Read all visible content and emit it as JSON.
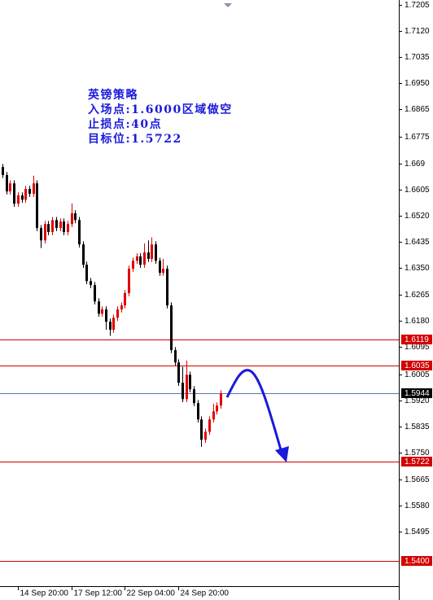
{
  "chart_data": {
    "type": "candlestick",
    "annotation": [
      "英镑策略",
      "入场点:1.6000区域做空",
      "止损点:40点",
      "目标位:1.5722"
    ],
    "categories": [
      null,
      null,
      null,
      null,
      "14 Sep 20:00",
      null,
      null,
      null,
      null,
      null,
      null,
      null,
      null,
      null,
      null,
      null,
      null,
      null,
      "17 Sep 12:00",
      null,
      null,
      null,
      null,
      null,
      null,
      null,
      null,
      null,
      null,
      null,
      null,
      null,
      "22 Sep 04:00",
      null,
      null,
      null,
      null,
      null,
      null,
      null,
      null,
      null,
      null,
      null,
      null,
      null,
      "24 Sep 20:00",
      null,
      null,
      null,
      null,
      null,
      null,
      null,
      null,
      null,
      null,
      null
    ],
    "open": [
      1.6678,
      1.6652,
      1.6599,
      1.6625,
      1.6559,
      1.6586,
      1.6572,
      1.6607,
      1.6591,
      1.6625,
      1.648,
      1.644,
      1.6493,
      1.6467,
      1.6506,
      1.648,
      1.6501,
      1.6467,
      1.6493,
      1.6528,
      1.6506,
      1.6427,
      1.6361,
      1.6308,
      1.6295,
      1.6242,
      1.6202,
      1.6216,
      1.6176,
      1.615,
      1.6189,
      1.6216,
      1.6229,
      1.6269,
      1.6348,
      1.6374,
      1.6388,
      1.6361,
      1.6401,
      1.638,
      1.6427,
      1.6374,
      1.6335,
      1.6348,
      1.6229,
      1.6084,
      1.6044,
      1.5978,
      1.5925,
      1.6004,
      1.5957,
      1.5912,
      1.5859,
      1.5793,
      1.5819,
      1.5859,
      1.5885,
      1.5904
    ],
    "high": [
      1.6688,
      1.6662,
      1.6635,
      1.6635,
      1.6596,
      1.6596,
      1.6617,
      1.6617,
      1.665,
      1.6635,
      1.649,
      1.6503,
      1.6503,
      1.6516,
      1.6516,
      1.6511,
      1.6511,
      1.6503,
      1.656,
      1.6538,
      1.6516,
      1.6437,
      1.6371,
      1.6318,
      1.6305,
      1.6252,
      1.6226,
      1.6226,
      1.6186,
      1.6199,
      1.6226,
      1.6239,
      1.6279,
      1.6358,
      1.6384,
      1.6398,
      1.6398,
      1.643,
      1.644,
      1.645,
      1.6437,
      1.6384,
      1.638,
      1.6358,
      1.6239,
      1.6094,
      1.6054,
      1.603,
      1.605,
      1.6014,
      1.5967,
      1.5922,
      1.5869,
      1.5829,
      1.5869,
      1.591,
      1.5914,
      1.5954
    ],
    "low": [
      1.6642,
      1.6589,
      1.6589,
      1.6549,
      1.6549,
      1.6562,
      1.6562,
      1.6581,
      1.6581,
      1.647,
      1.6415,
      1.643,
      1.6457,
      1.6457,
      1.647,
      1.647,
      1.6457,
      1.6457,
      1.6483,
      1.6496,
      1.6417,
      1.6351,
      1.6298,
      1.6285,
      1.6232,
      1.6192,
      1.6192,
      1.615,
      1.613,
      1.614,
      1.6179,
      1.6206,
      1.6219,
      1.6259,
      1.6338,
      1.6364,
      1.6351,
      1.6351,
      1.637,
      1.637,
      1.6364,
      1.6325,
      1.6325,
      1.6219,
      1.6074,
      1.6034,
      1.5968,
      1.5915,
      1.5915,
      1.5947,
      1.5902,
      1.5849,
      1.577,
      1.5783,
      1.5809,
      1.5849,
      1.5875,
      1.5894
    ],
    "close": [
      1.6652,
      1.6599,
      1.6625,
      1.6559,
      1.6586,
      1.6572,
      1.6607,
      1.6591,
      1.6625,
      1.648,
      1.644,
      1.6493,
      1.6467,
      1.6506,
      1.648,
      1.6501,
      1.6467,
      1.6493,
      1.6528,
      1.6506,
      1.6427,
      1.6361,
      1.6308,
      1.6295,
      1.6242,
      1.6202,
      1.6216,
      1.6176,
      1.615,
      1.6189,
      1.6216,
      1.6229,
      1.6269,
      1.6348,
      1.6374,
      1.6388,
      1.6361,
      1.6401,
      1.638,
      1.6427,
      1.6374,
      1.6335,
      1.6348,
      1.6229,
      1.6084,
      1.6044,
      1.5978,
      1.5925,
      1.6004,
      1.5957,
      1.5912,
      1.5859,
      1.5793,
      1.5819,
      1.5859,
      1.5885,
      1.5904,
      1.5944
    ],
    "up_color": "#e00000",
    "down_color": "#000000",
    "ylim": [
      1.5318,
      1.722
    ],
    "yticks": [
      1.7205,
      {
        "value": 1.712,
        "label": "1.7120"
      },
      1.7035,
      {
        "value": 1.695,
        "label": "1.6950"
      },
      1.6865,
      1.6775,
      1.669,
      1.6605,
      {
        "value": 1.652,
        "label": "1.6520"
      },
      1.6435,
      {
        "value": 1.635,
        "label": "1.6350"
      },
      1.6265,
      {
        "value": 1.618,
        "label": "1.6180"
      },
      1.6095,
      1.6005,
      {
        "value": 1.592,
        "label": "1.5920"
      },
      1.5835,
      {
        "value": 1.575,
        "label": "1.5750"
      },
      1.5665,
      {
        "value": 1.558,
        "label": "1.5580"
      },
      1.5495
    ],
    "hlines": [
      {
        "value": 1.6119,
        "color": "#d40000"
      },
      {
        "value": 1.6035,
        "color": "#d40000"
      },
      {
        "value": 1.5944,
        "color": "#000000"
      },
      {
        "value": 1.5722,
        "color": "#d40000"
      },
      {
        "value": 1.54,
        "label": "1.5400",
        "color": "#d40000"
      }
    ]
  }
}
